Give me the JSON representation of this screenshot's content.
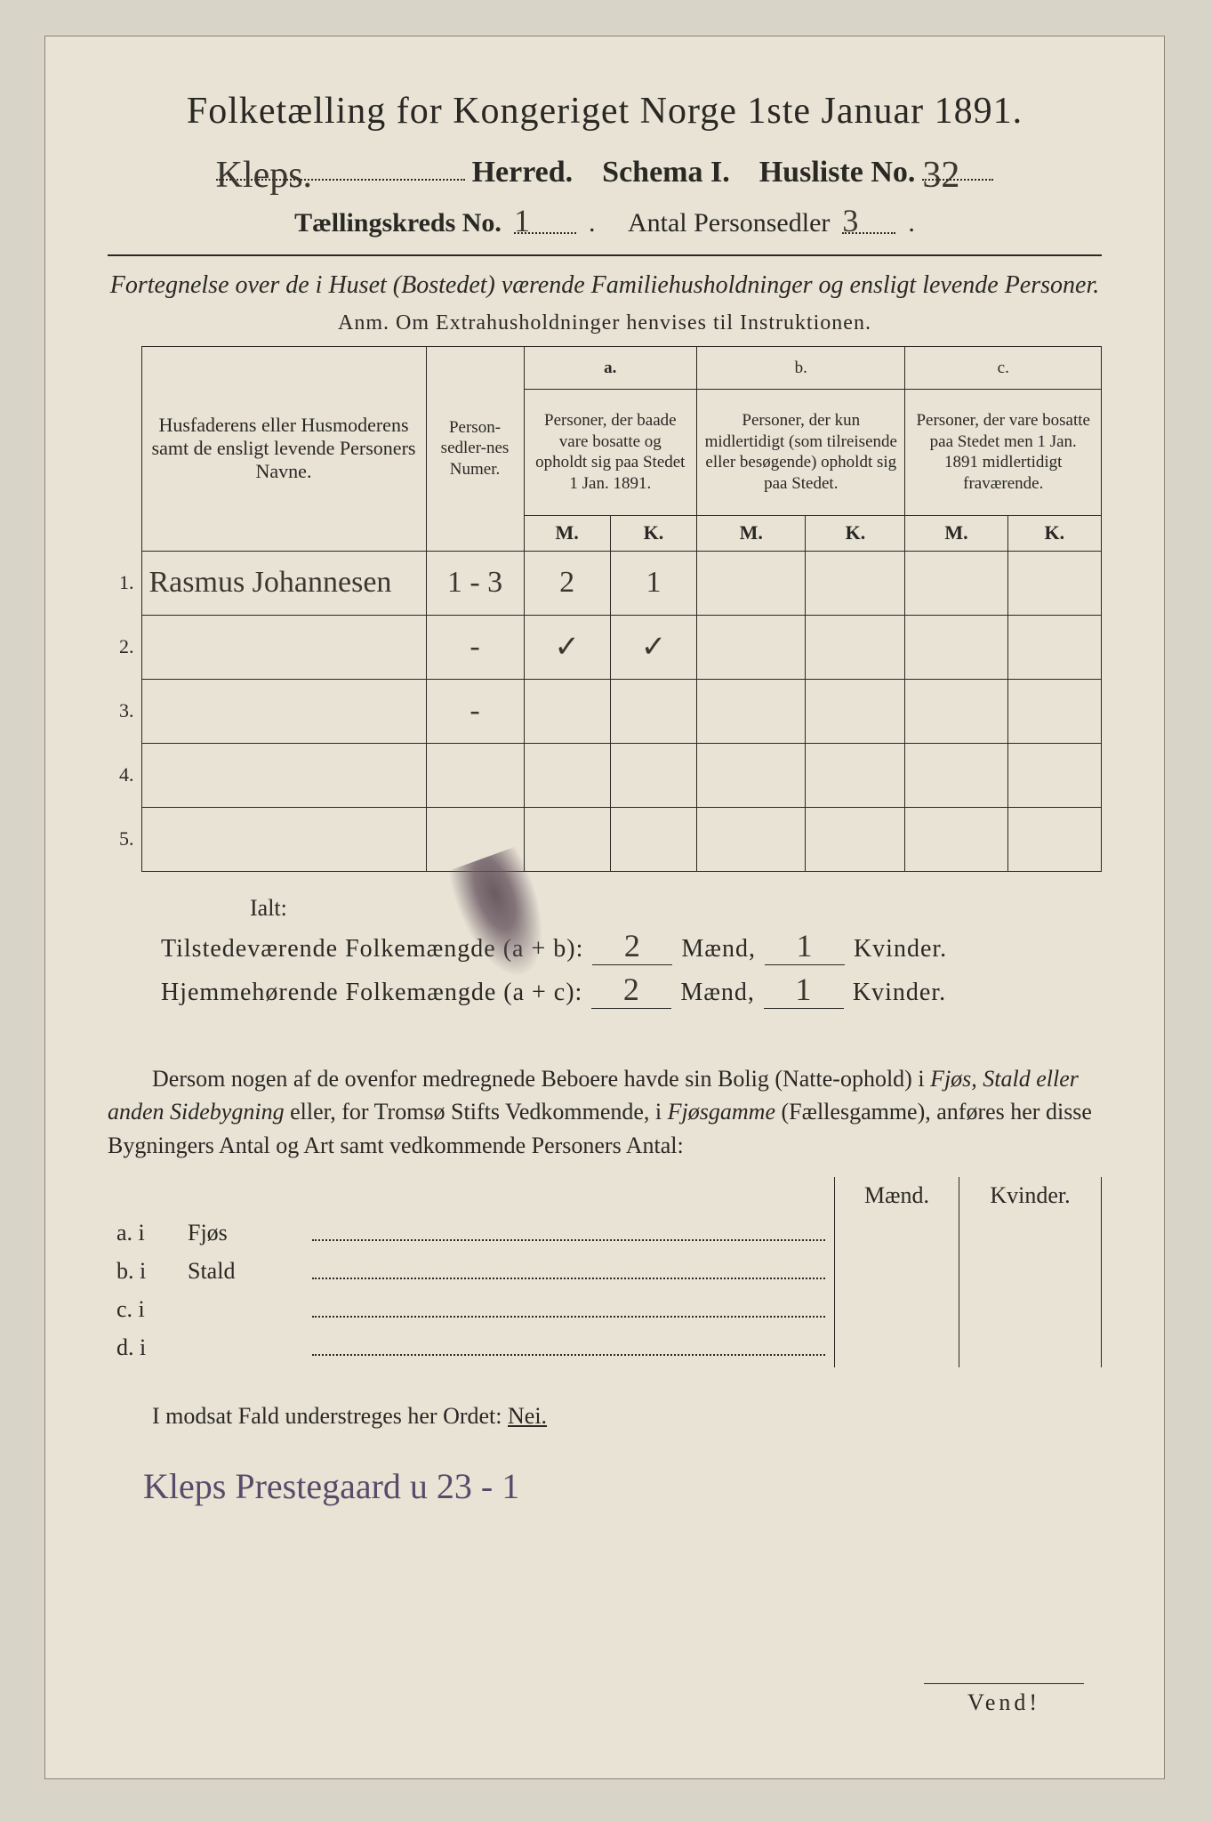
{
  "header": {
    "main_title": "Folketælling for Kongeriget Norge 1ste Januar 1891.",
    "herred_value": "Kleps.",
    "herred_label": "Herred.",
    "schema_label": "Schema I.",
    "husliste_label": "Husliste No.",
    "husliste_value": "32",
    "kreds_label": "Tællingskreds No.",
    "kreds_value": "1",
    "antal_label": "Antal Personsedler",
    "antal_value": "3"
  },
  "subtitle": {
    "line": "Fortegnelse over de i Huset (Bostedet) værende Familiehusholdninger og ensligt levende Personer.",
    "anm": "Anm. Om Extrahusholdninger henvises til Instruktionen."
  },
  "table": {
    "columns": {
      "names": "Husfaderens eller Husmoderens samt de ensligt levende Personers Navne.",
      "numer": "Person-sedler-nes Numer.",
      "a_label": "a.",
      "a_desc": "Personer, der baade vare bosatte og opholdt sig paa Stedet 1 Jan. 1891.",
      "b_label": "b.",
      "b_desc": "Personer, der kun midlertidigt (som tilreisende eller besøgende) opholdt sig paa Stedet.",
      "c_label": "c.",
      "c_desc": "Personer, der vare bosatte paa Stedet men 1 Jan. 1891 midlertidigt fraværende.",
      "M": "M.",
      "K": "K."
    },
    "rows": [
      {
        "n": "1.",
        "name": "Rasmus Johannesen",
        "numer": "1 - 3",
        "aM": "2",
        "aK": "1",
        "bM": "",
        "bK": "",
        "cM": "",
        "cK": ""
      },
      {
        "n": "2.",
        "name": "",
        "numer": "-",
        "aM": "✓",
        "aK": "✓",
        "bM": "",
        "bK": "",
        "cM": "",
        "cK": ""
      },
      {
        "n": "3.",
        "name": "",
        "numer": "-",
        "aM": "",
        "aK": "",
        "bM": "",
        "bK": "",
        "cM": "",
        "cK": ""
      },
      {
        "n": "4.",
        "name": "",
        "numer": "",
        "aM": "",
        "aK": "",
        "bM": "",
        "bK": "",
        "cM": "",
        "cK": ""
      },
      {
        "n": "5.",
        "name": "",
        "numer": "",
        "aM": "",
        "aK": "",
        "bM": "",
        "bK": "",
        "cM": "",
        "cK": ""
      }
    ]
  },
  "totals": {
    "ialt": "Ialt:",
    "present_label": "Tilstedeværende Folkemængde (a + b):",
    "resident_label": "Hjemmehørende Folkemængde (a + c):",
    "maend": "Mænd,",
    "kvinder": "Kvinder.",
    "present_m": "2",
    "present_k": "1",
    "resident_m": "2",
    "resident_k": "1"
  },
  "paragraph": {
    "text1": "Dersom nogen af de ovenfor medregnede Beboere havde sin Bolig (Natte-ophold) i ",
    "em1": "Fjøs, Stald eller anden Sidebygning",
    "text2": " eller, for Tromsø Stifts Vedkommende, i ",
    "em2": "Fjøsgamme",
    "text3": " (Fællesgamme), anføres her disse Bygningers Antal og Art samt vedkommende Personers Antal:"
  },
  "sidetable": {
    "head_m": "Mænd.",
    "head_k": "Kvinder.",
    "rows": [
      {
        "label": "a.  i",
        "type": "Fjøs"
      },
      {
        "label": "b.  i",
        "type": "Stald"
      },
      {
        "label": "c.  i",
        "type": ""
      },
      {
        "label": "d.  i",
        "type": ""
      }
    ]
  },
  "footer": {
    "modsat": "I modsat Fald understreges her Ordet: ",
    "nei": "Nei.",
    "bottom_hand": "Kleps Prestegaard u 23 - 1",
    "vend": "Vend!"
  },
  "colors": {
    "page_bg": "#e8e3d5",
    "outer_bg": "#d8d4c8",
    "ink": "#2a2824",
    "hand_ink": "#3a3730",
    "purple_ink": "#5a4a6a"
  }
}
